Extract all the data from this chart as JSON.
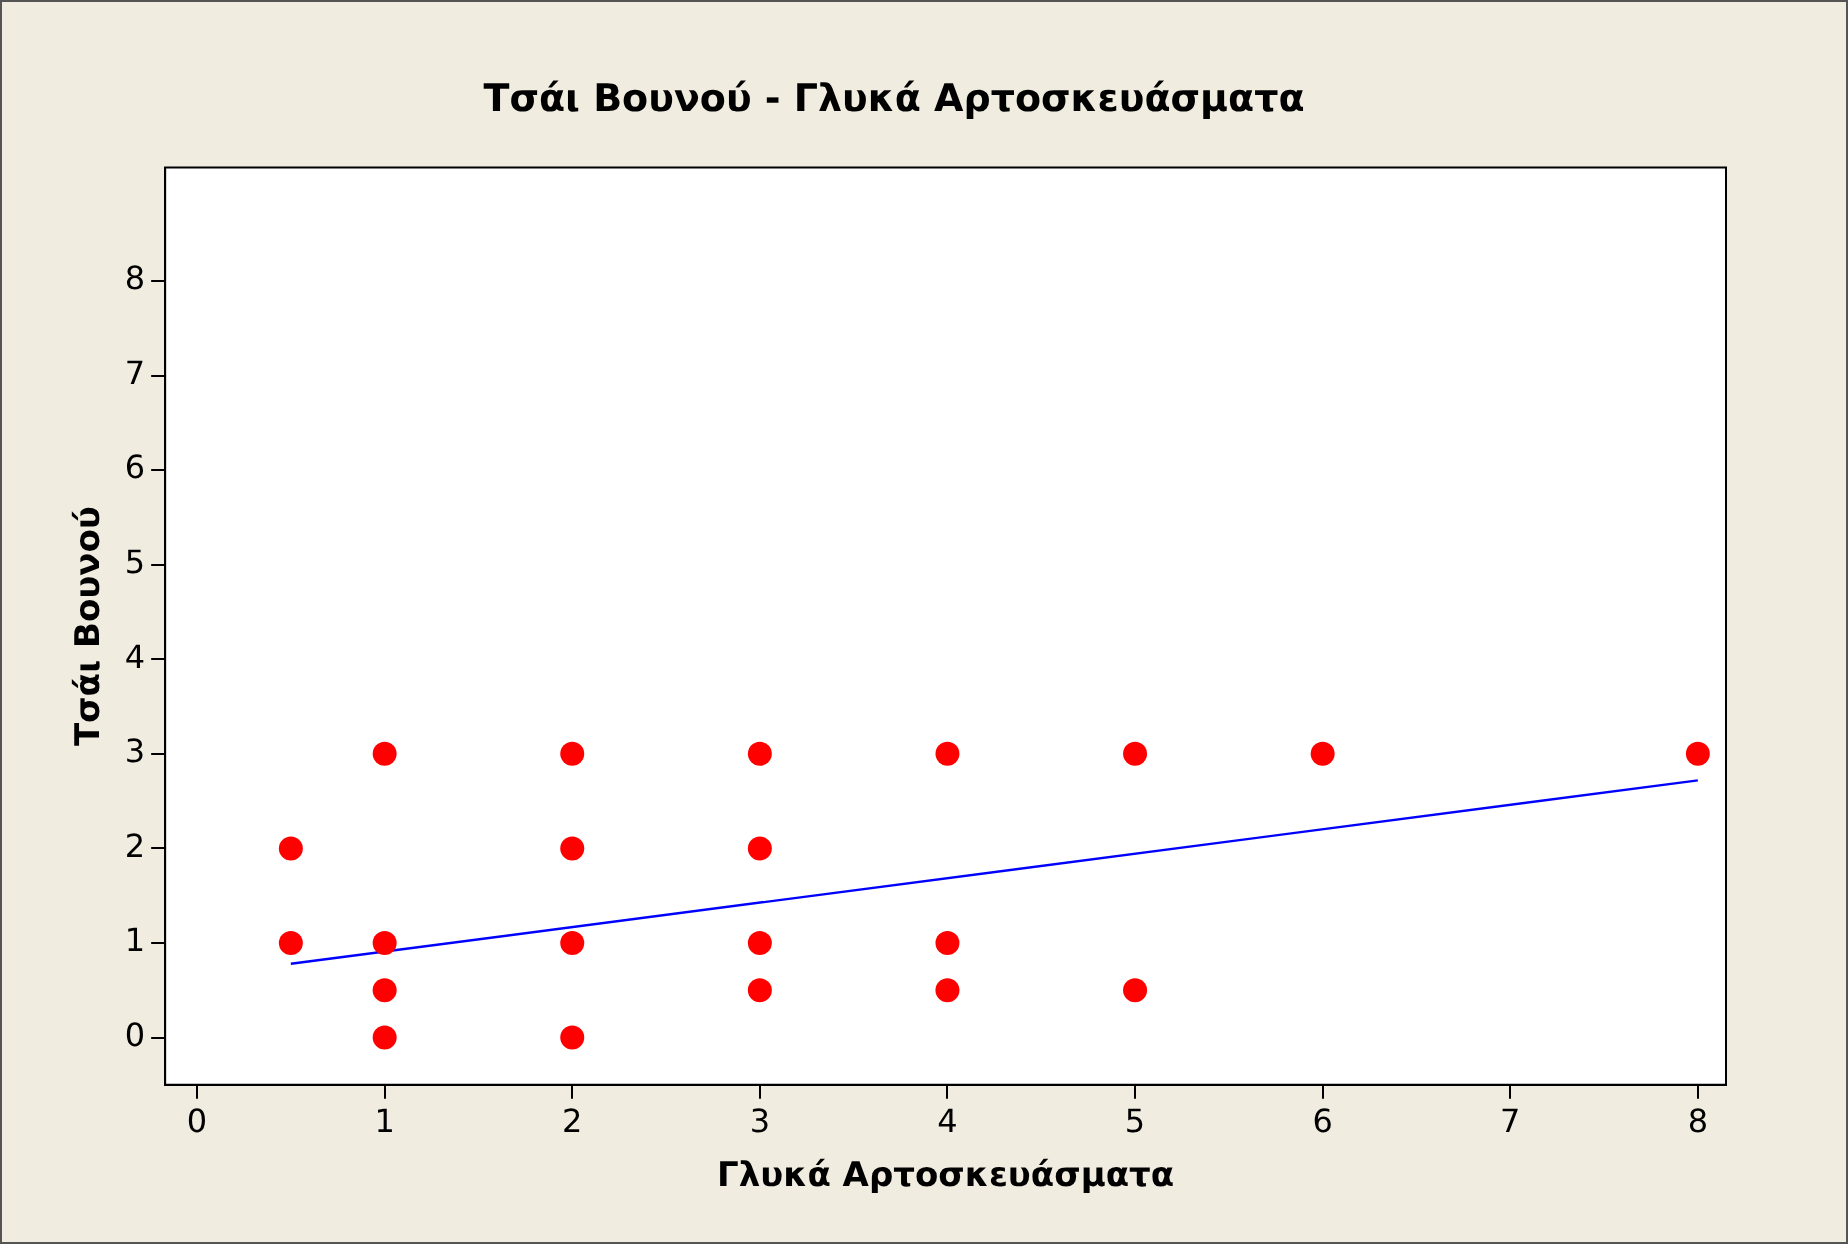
{
  "chart_data": {
    "type": "scatter",
    "title": "Τσάι Βουνού - Γλυκά Αρτοσκευάσματα",
    "xlabel": "Γλυκά Αρτοσκευάσματα",
    "ylabel": "Τσάι Βουνού",
    "xlim": [
      -0.17,
      8.15
    ],
    "ylim": [
      -0.5,
      9.2
    ],
    "xticks": [
      0,
      1,
      2,
      3,
      4,
      5,
      6,
      7,
      8
    ],
    "yticks": [
      0,
      1,
      2,
      3,
      4,
      5,
      6,
      7,
      8
    ],
    "grid": false,
    "legend": false,
    "marker": "circle",
    "series": [
      {
        "type": "scatter",
        "color": "#ff0000",
        "x": [
          0.5,
          0.5,
          1,
          1,
          1,
          1,
          2,
          2,
          2,
          2,
          3,
          3,
          3,
          3,
          4,
          4,
          4,
          5,
          5,
          6,
          8
        ],
        "values": [
          2,
          1,
          3,
          1,
          0.5,
          0,
          3,
          2,
          1,
          0,
          3,
          2,
          1,
          0.5,
          3,
          1,
          0.5,
          3,
          0.5,
          3,
          3
        ]
      },
      {
        "type": "line",
        "color": "#0000ff",
        "marker": "none",
        "x": [
          0.5,
          8
        ],
        "values": [
          0.78,
          2.72
        ]
      }
    ]
  }
}
